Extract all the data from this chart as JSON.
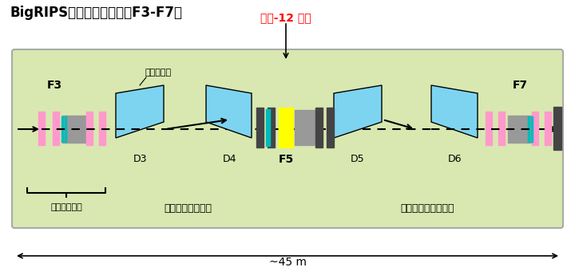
{
  "title": "BigRIPS　第二ステージ（F3-F7）",
  "carbon_label": "炭素-12 標的",
  "label_F3": "F3",
  "label_F7": "F7",
  "label_F5": "F5",
  "label_D3": "D3",
  "label_D4": "D4",
  "label_D5": "D5",
  "label_D6": "D6",
  "label_dipole": "双極電磁石",
  "label_detector": "粒子検出器群",
  "label_count_in": "入射粒子数を計数",
  "label_count_out": "非反応粒子数を計数",
  "label_scale": "~45 m",
  "bg_color": "#d8e8b0",
  "dipole_color": "#7dd4f0",
  "pink_color": "#ff99cc",
  "gray_color": "#999999",
  "dark_gray": "#444444",
  "yellow_color": "#ffff00",
  "teal_color": "#00bbbb",
  "box_border_color": "#aaaaaa"
}
